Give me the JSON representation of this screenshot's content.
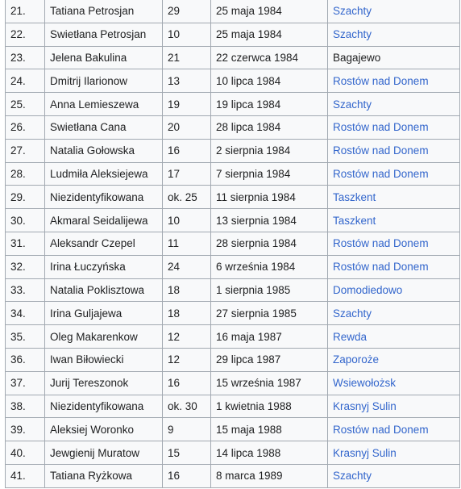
{
  "victims": {
    "rows": [
      {
        "num": "21.",
        "name": "Tatiana Petrosjan",
        "age": "29",
        "date": "25 maja 1984",
        "place": "Szachty",
        "place_is_link": true
      },
      {
        "num": "22.",
        "name": "Swietłana Petrosjan",
        "age": "10",
        "date": "25 maja 1984",
        "place": "Szachty",
        "place_is_link": true
      },
      {
        "num": "23.",
        "name": "Jelena Bakulina",
        "age": "21",
        "date": "22 czerwca 1984",
        "place": "Bagajewo",
        "place_is_link": false
      },
      {
        "num": "24.",
        "name": "Dmitrij Ilarionow",
        "age": "13",
        "date": "10 lipca 1984",
        "place": "Rostów nad Donem",
        "place_is_link": true
      },
      {
        "num": "25.",
        "name": "Anna Lemieszewa",
        "age": "19",
        "date": "19 lipca 1984",
        "place": "Szachty",
        "place_is_link": true
      },
      {
        "num": "26.",
        "name": "Swietłana Cana",
        "age": "20",
        "date": "28 lipca 1984",
        "place": "Rostów nad Donem",
        "place_is_link": true
      },
      {
        "num": "27.",
        "name": "Natalia Gołowska",
        "age": "16",
        "date": "2 sierpnia 1984",
        "place": "Rostów nad Donem",
        "place_is_link": true
      },
      {
        "num": "28.",
        "name": "Ludmiła Aleksiejewa",
        "age": "17",
        "date": "7 sierpnia 1984",
        "place": "Rostów nad Donem",
        "place_is_link": true
      },
      {
        "num": "29.",
        "name": "Niezidentyfikowana",
        "age": "ok. 25",
        "date": "11 sierpnia 1984",
        "place": "Taszkent",
        "place_is_link": true
      },
      {
        "num": "30.",
        "name": "Akmaral Seidalijewa",
        "age": "10",
        "date": "13 sierpnia 1984",
        "place": "Taszkent",
        "place_is_link": true
      },
      {
        "num": "31.",
        "name": "Aleksandr Czepel",
        "age": "11",
        "date": "28 sierpnia 1984",
        "place": "Rostów nad Donem",
        "place_is_link": true
      },
      {
        "num": "32.",
        "name": "Irina Łuczyńska",
        "age": "24",
        "date": "6 września 1984",
        "place": "Rostów nad Donem",
        "place_is_link": true
      },
      {
        "num": "33.",
        "name": "Natalia Pokliszt­owa",
        "age": "18",
        "date": "1 sierpnia 1985",
        "place": "Domodiedowo",
        "place_is_link": true
      },
      {
        "num": "34.",
        "name": "Irina Guljajewa",
        "age": "18",
        "date": "27 sierpnia 1985",
        "place": "Szachty",
        "place_is_link": true
      },
      {
        "num": "35.",
        "name": "Oleg Makarenkow",
        "age": "12",
        "date": "16 maja 1987",
        "place": "Rewda",
        "place_is_link": true
      },
      {
        "num": "36.",
        "name": "Iwan Biłowiecki",
        "age": "12",
        "date": "29 lipca 1987",
        "place": "Zaporoże",
        "place_is_link": true
      },
      {
        "num": "37.",
        "name": "Jurij Tereszonok",
        "age": "16",
        "date": "15 września 1987",
        "place": "Wsiewołożsk",
        "place_is_link": true
      },
      {
        "num": "38.",
        "name": "Niezidentyfikowana",
        "age": "ok. 30",
        "date": "1 kwietnia 1988",
        "place": "Krasnyj Sulin",
        "place_is_link": true
      },
      {
        "num": "39.",
        "name": "Aleksiej Woronko",
        "age": "9",
        "date": "15 maja 1988",
        "place": "Rostów nad Donem",
        "place_is_link": true
      },
      {
        "num": "40.",
        "name": "Jewgienij Muratow",
        "age": "15",
        "date": "14 lipca 1988",
        "place": "Krasnyj Sulin",
        "place_is_link": true
      },
      {
        "num": "41.",
        "name": "Tatiana Ryżkowa",
        "age": "16",
        "date": "8 marca 1989",
        "place": "Szachty",
        "place_is_link": true
      }
    ]
  },
  "colors": {
    "link": "#3366cc",
    "text": "#202122",
    "border": "#a2a9b1",
    "cell_background": "#f8f9fa"
  }
}
